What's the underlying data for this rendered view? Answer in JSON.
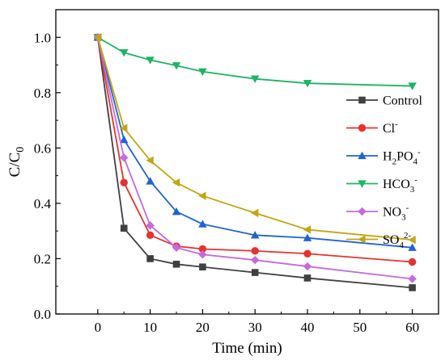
{
  "chart_data": {
    "type": "line",
    "xlabel": "Time (min)",
    "ylabel": {
      "main": "C/C",
      "sub": "0"
    },
    "xlim": [
      -8,
      65
    ],
    "ylim": [
      0.0,
      1.1
    ],
    "xticks": [
      0,
      10,
      20,
      30,
      40,
      50,
      60
    ],
    "yticks": [
      0.0,
      0.2,
      0.4,
      0.6,
      0.8,
      1.0
    ],
    "ytick_labels": [
      "0.0",
      "0.2",
      "0.4",
      "0.6",
      "0.8",
      "1.0"
    ],
    "x": [
      0,
      5,
      10,
      15,
      20,
      30,
      40,
      60
    ],
    "legend_position": "right",
    "series": [
      {
        "key": "control",
        "name": "Control",
        "color": "#404040",
        "marker": "square",
        "values": [
          1.0,
          0.31,
          0.2,
          0.18,
          0.17,
          0.15,
          0.13,
          0.095
        ],
        "legend": {
          "main": "Control"
        }
      },
      {
        "key": "cl",
        "name": "Cl-",
        "color": "#e8322d",
        "marker": "circle",
        "values": [
          1.0,
          0.475,
          0.285,
          0.245,
          0.235,
          0.228,
          0.218,
          0.188
        ],
        "legend": {
          "main": "Cl",
          "sup": "-"
        }
      },
      {
        "key": "h2po4",
        "name": "H2PO4-",
        "color": "#1f63d4",
        "marker": "triangle-up",
        "values": [
          1.0,
          0.63,
          0.48,
          0.37,
          0.325,
          0.285,
          0.275,
          0.24
        ],
        "legend": {
          "parts": [
            {
              "t": "H",
              "s": "n"
            },
            {
              "t": "2",
              "s": "sub"
            },
            {
              "t": "PO",
              "s": "n"
            },
            {
              "t": "4",
              "s": "sub"
            },
            {
              "t": "-",
              "s": "sup"
            }
          ]
        }
      },
      {
        "key": "hco3",
        "name": "HCO3-",
        "color": "#1db464",
        "marker": "triangle-down",
        "values": [
          1.0,
          0.945,
          0.918,
          0.898,
          0.876,
          0.85,
          0.834,
          0.824
        ],
        "legend": {
          "parts": [
            {
              "t": "HCO",
              "s": "n"
            },
            {
              "t": "3",
              "s": "sub"
            },
            {
              "t": "-",
              "s": "sup"
            }
          ]
        }
      },
      {
        "key": "no3",
        "name": "NO3-",
        "color": "#c36ae0",
        "marker": "diamond",
        "values": [
          1.0,
          0.565,
          0.32,
          0.24,
          0.215,
          0.195,
          0.172,
          0.127
        ],
        "legend": {
          "parts": [
            {
              "t": "NO",
              "s": "n"
            },
            {
              "t": "3",
              "s": "sub"
            },
            {
              "t": "-",
              "s": "sup"
            }
          ]
        }
      },
      {
        "key": "so4",
        "name": "SO42-",
        "color": "#c4a513",
        "marker": "triangle-left",
        "values": [
          1.0,
          0.672,
          0.555,
          0.475,
          0.427,
          0.365,
          0.305,
          0.268
        ],
        "legend": {
          "parts": [
            {
              "t": "SO",
              "s": "n"
            },
            {
              "t": "4",
              "s": "sub"
            },
            {
              "t": "2-",
              "s": "sup"
            }
          ]
        }
      }
    ]
  }
}
